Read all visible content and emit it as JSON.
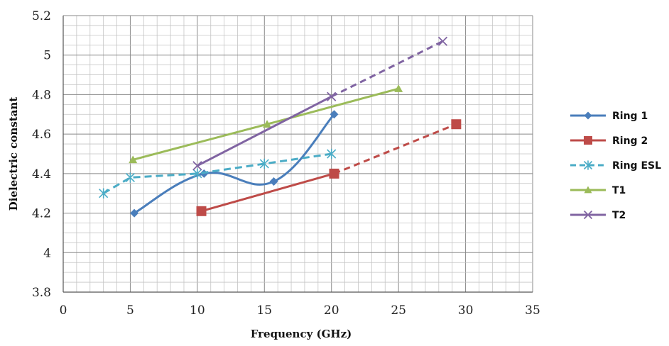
{
  "chart_data": {
    "type": "line",
    "title": "",
    "xlabel": "Frequency (GHz)",
    "ylabel": "Dielectric constant",
    "xlim": [
      0,
      35
    ],
    "ylim": [
      3.8,
      5.2
    ],
    "x_ticks": [
      "0",
      "5",
      "10",
      "15",
      "20",
      "25",
      "30",
      "35"
    ],
    "y_ticks": [
      "3.8",
      "4",
      "4.2",
      "4.4",
      "4.6",
      "4.8",
      "5",
      "5.2"
    ],
    "grid": true,
    "legend_position": "right",
    "series": [
      {
        "name": "Ring 1",
        "color": "#4a7ebb",
        "marker": "diamond",
        "dash": "solid",
        "smooth": true,
        "points": [
          [
            5.3,
            4.2
          ],
          [
            10.5,
            4.4
          ],
          [
            15.7,
            4.36
          ],
          [
            20.2,
            4.7
          ]
        ]
      },
      {
        "name": "Ring 2",
        "color": "#be4b48",
        "marker": "square",
        "dash": "solid-then-dashed",
        "points": [
          [
            10.3,
            4.21
          ],
          [
            20.2,
            4.4
          ],
          [
            29.3,
            4.65
          ]
        ]
      },
      {
        "name": "Ring ESL",
        "color": "#4bacc6",
        "marker": "asterisk",
        "dash": "dashed",
        "points": [
          [
            3.0,
            4.3
          ],
          [
            5.0,
            4.38
          ],
          [
            10.0,
            4.4
          ],
          [
            15.0,
            4.45
          ],
          [
            20.0,
            4.5
          ]
        ]
      },
      {
        "name": "T1",
        "color": "#9bbb59",
        "marker": "triangle",
        "dash": "solid",
        "points": [
          [
            5.2,
            4.47
          ],
          [
            15.2,
            4.65
          ],
          [
            25.0,
            4.83
          ]
        ]
      },
      {
        "name": "T2",
        "color": "#8064a2",
        "marker": "x",
        "dash": "solid-then-dashed",
        "points": [
          [
            10.0,
            4.44
          ],
          [
            20.0,
            4.79
          ],
          [
            28.3,
            5.07
          ]
        ]
      }
    ]
  }
}
